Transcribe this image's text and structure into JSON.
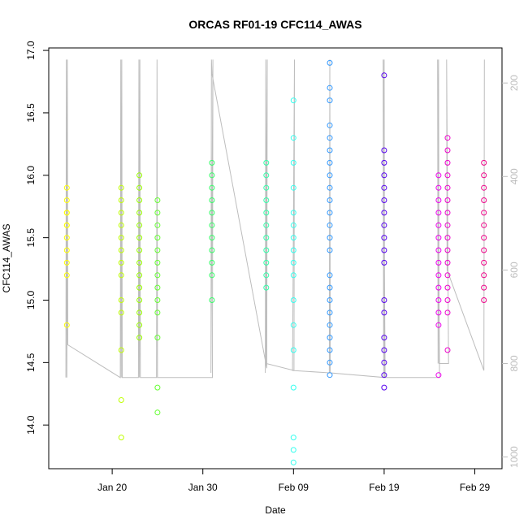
{
  "chart_data": {
    "type": "scatter",
    "title": "ORCAS RF01-19 CFC114_AWAS",
    "xlabel": "Date",
    "ylabel": "CFC114_AWAS",
    "x_ticks": [
      "Jan 20",
      "Jan 30",
      "Feb 09",
      "Feb 19",
      "Feb 29"
    ],
    "y_ticks": [
      "14.0",
      "14.5",
      "15.0",
      "15.5",
      "16.0",
      "16.5",
      "17.0"
    ],
    "y2_ticks": [
      "200",
      "400",
      "600",
      "800",
      "1000"
    ],
    "ylim": [
      13.65,
      17.02
    ],
    "y2lim": [
      1025,
      125
    ],
    "xlim": [
      "2016-01-13",
      "2016-03-03"
    ],
    "grid": false,
    "secondary_color": "#bdbdbd",
    "series": [
      {
        "date": "2016-01-15",
        "color": "#ffff00",
        "values": [
          15.9,
          15.8,
          15.7,
          15.7,
          15.6,
          15.6,
          15.5,
          15.4,
          15.3,
          15.2,
          14.8
        ]
      },
      {
        "date": "2016-01-21",
        "color": "#bfff00",
        "values": [
          15.9,
          15.8,
          15.7,
          15.6,
          15.5,
          15.4,
          15.3,
          15.2,
          15.0,
          14.9,
          14.6,
          14.2,
          13.9
        ]
      },
      {
        "date": "2016-01-23",
        "color": "#99ff00",
        "values": [
          16.0,
          15.9,
          15.8,
          15.7,
          15.6,
          15.5,
          15.4,
          15.3,
          15.2,
          15.1,
          15.0,
          14.9,
          14.8,
          14.7
        ]
      },
      {
        "date": "2016-01-25",
        "color": "#66ff33",
        "values": [
          15.8,
          15.7,
          15.6,
          15.5,
          15.4,
          15.3,
          15.2,
          15.1,
          15.0,
          14.9,
          14.7,
          14.3,
          14.1
        ]
      },
      {
        "date": "2016-01-31",
        "color": "#33ff66",
        "values": [
          16.1,
          16.0,
          15.9,
          15.8,
          15.7,
          15.6,
          15.5,
          15.4,
          15.3,
          15.2,
          15.0
        ]
      },
      {
        "date": "2016-02-06",
        "color": "#33ffaa",
        "values": [
          16.1,
          16.0,
          15.9,
          15.8,
          15.7,
          15.6,
          15.5,
          15.4,
          15.3,
          15.2,
          15.1
        ]
      },
      {
        "date": "2016-02-09",
        "color": "#33ffee",
        "values": [
          16.6,
          16.3,
          16.1,
          15.9,
          15.7,
          15.6,
          15.5,
          15.4,
          15.3,
          15.2,
          15.0,
          14.8,
          14.6,
          14.3,
          13.9,
          13.8,
          13.7
        ]
      },
      {
        "date": "2016-02-13",
        "color": "#3399ff",
        "values": [
          16.9,
          16.7,
          16.6,
          16.4,
          16.3,
          16.2,
          16.1,
          16.0,
          15.9,
          15.8,
          15.7,
          15.6,
          15.5,
          15.4,
          15.2,
          15.1,
          15.0,
          14.9,
          14.8,
          14.7,
          14.6,
          14.5,
          14.4
        ]
      },
      {
        "date": "2016-02-19",
        "color": "#5500ee",
        "values": [
          16.8,
          16.2,
          16.1,
          16.0,
          15.9,
          15.8,
          15.7,
          15.6,
          15.5,
          15.4,
          15.3,
          15.0,
          14.9,
          14.7,
          14.6,
          14.5,
          14.4,
          14.3
        ]
      },
      {
        "date": "2016-02-25",
        "color": "#ee00ee",
        "values": [
          16.0,
          15.9,
          15.8,
          15.7,
          15.6,
          15.5,
          15.4,
          15.3,
          15.2,
          15.1,
          15.0,
          14.9,
          14.8,
          14.4
        ]
      },
      {
        "date": "2016-02-26",
        "color": "#ee00cc",
        "values": [
          16.3,
          16.2,
          16.1,
          16.0,
          15.9,
          15.8,
          15.7,
          15.6,
          15.5,
          15.4,
          15.3,
          15.2,
          15.1,
          15.0,
          14.9,
          14.6
        ]
      },
      {
        "date": "2016-03-01",
        "color": "#ee0088",
        "values": [
          16.1,
          16.0,
          15.9,
          15.8,
          15.7,
          15.6,
          15.5,
          15.4,
          15.3,
          15.2,
          15.1,
          15.0
        ]
      }
    ],
    "altitude_trace": {
      "color": "#bdbdbd",
      "points": [
        [
          "2016-01-15",
          830
        ],
        [
          "2016-01-15",
          150
        ],
        [
          "2016-01-15",
          830
        ],
        [
          "2016-01-15",
          150
        ],
        [
          "2016-01-15",
          760
        ],
        [
          "2016-01-21",
          830
        ],
        [
          "2016-01-21",
          150
        ],
        [
          "2016-01-21",
          830
        ],
        [
          "2016-01-21",
          150
        ],
        [
          "2016-01-21",
          830
        ],
        [
          "2016-01-23",
          830
        ],
        [
          "2016-01-23",
          150
        ],
        [
          "2016-01-23",
          830
        ],
        [
          "2016-01-23",
          150
        ],
        [
          "2016-01-23",
          830
        ],
        [
          "2016-01-25",
          830
        ],
        [
          "2016-01-25",
          150
        ],
        [
          "2016-01-25",
          830
        ],
        [
          "2016-01-31",
          830
        ],
        [
          "2016-01-31",
          150
        ],
        [
          "2016-01-31",
          820
        ],
        [
          "2016-01-31",
          150
        ],
        [
          "2016-01-31",
          180
        ],
        [
          "2016-02-06",
          810
        ],
        [
          "2016-02-06",
          150
        ],
        [
          "2016-02-06",
          820
        ],
        [
          "2016-02-06",
          150
        ],
        [
          "2016-02-06",
          800
        ],
        [
          "2016-02-09",
          815
        ],
        [
          "2016-02-09",
          150
        ],
        [
          "2016-02-09",
          815
        ],
        [
          "2016-02-13",
          820
        ],
        [
          "2016-02-13",
          150
        ],
        [
          "2016-02-13",
          820
        ],
        [
          "2016-02-19",
          830
        ],
        [
          "2016-02-19",
          150
        ],
        [
          "2016-02-19",
          830
        ],
        [
          "2016-02-19",
          150
        ],
        [
          "2016-02-19",
          830
        ],
        [
          "2016-02-25",
          830
        ],
        [
          "2016-02-25",
          150
        ],
        [
          "2016-02-25",
          800
        ],
        [
          "2016-02-25",
          150
        ],
        [
          "2016-02-25",
          800
        ],
        [
          "2016-02-26",
          800
        ],
        [
          "2016-02-26",
          150
        ],
        [
          "2016-02-26",
          600
        ],
        [
          "2016-03-01",
          815
        ],
        [
          "2016-03-01",
          150
        ]
      ]
    }
  }
}
